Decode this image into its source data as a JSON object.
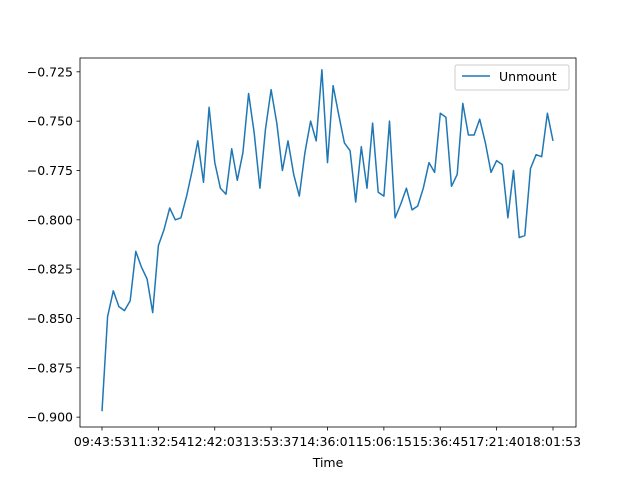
{
  "chart_data": {
    "type": "line",
    "title": "",
    "xlabel": "Time",
    "ylabel": "",
    "grid": false,
    "legend_position": "top-right",
    "x_tick_labels": [
      "09:43:53",
      "11:32:54",
      "12:42:03",
      "13:53:37",
      "14:36:01",
      "15:06:15",
      "15:36:45",
      "17:21:40",
      "18:01:53"
    ],
    "y_ticks": [
      -0.9,
      -0.875,
      -0.85,
      -0.825,
      -0.8,
      -0.775,
      -0.75,
      -0.725
    ],
    "y_tick_labels": [
      "−0.900",
      "−0.875",
      "−0.850",
      "−0.825",
      "−0.800",
      "−0.775",
      "−0.750",
      "−0.725"
    ],
    "ylim": [
      -0.905,
      -0.718
    ],
    "series": [
      {
        "name": "Unmount",
        "color": "#1f77b4",
        "values": [
          -0.897,
          -0.849,
          -0.836,
          -0.844,
          -0.846,
          -0.841,
          -0.816,
          -0.824,
          -0.83,
          -0.847,
          -0.813,
          -0.805,
          -0.794,
          -0.8,
          -0.799,
          -0.788,
          -0.775,
          -0.76,
          -0.781,
          -0.743,
          -0.771,
          -0.784,
          -0.787,
          -0.764,
          -0.78,
          -0.766,
          -0.736,
          -0.756,
          -0.784,
          -0.754,
          -0.734,
          -0.751,
          -0.775,
          -0.76,
          -0.777,
          -0.788,
          -0.766,
          -0.75,
          -0.76,
          -0.724,
          -0.771,
          -0.732,
          -0.747,
          -0.761,
          -0.765,
          -0.791,
          -0.763,
          -0.784,
          -0.751,
          -0.786,
          -0.788,
          -0.75,
          -0.799,
          -0.792,
          -0.784,
          -0.795,
          -0.793,
          -0.784,
          -0.771,
          -0.776,
          -0.746,
          -0.748,
          -0.783,
          -0.777,
          -0.741,
          -0.757,
          -0.757,
          -0.749,
          -0.761,
          -0.776,
          -0.77,
          -0.772,
          -0.799,
          -0.775,
          -0.809,
          -0.808,
          -0.774,
          -0.767,
          -0.768,
          -0.746,
          -0.76
        ]
      }
    ]
  }
}
